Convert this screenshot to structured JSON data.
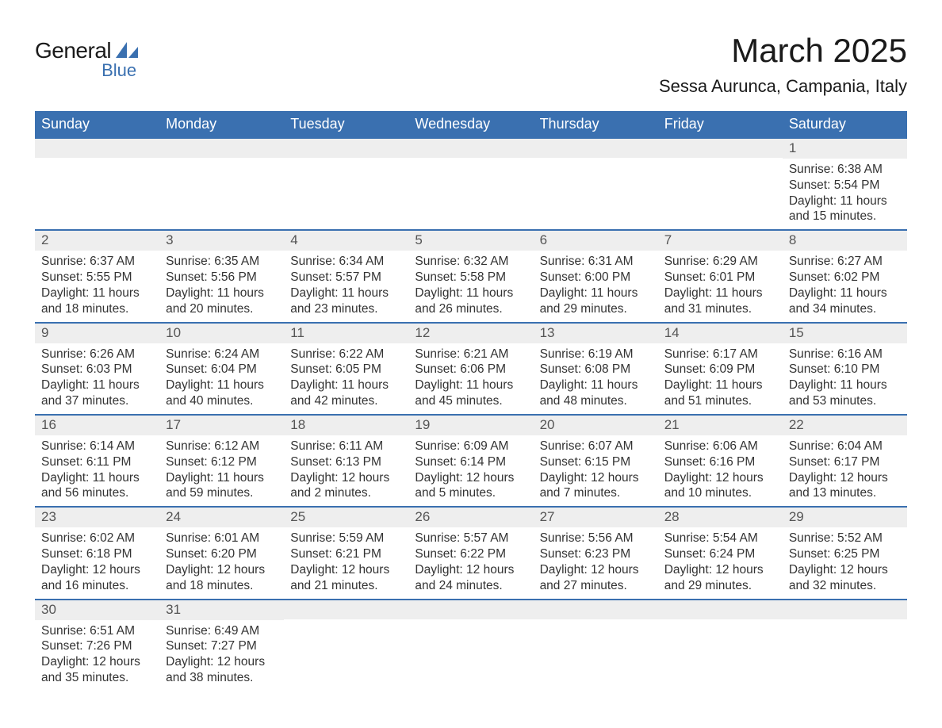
{
  "logo": {
    "main": "General",
    "sub": "Blue",
    "accent_color": "#3a70b0"
  },
  "title": "March 2025",
  "location": "Sessa Aurunca, Campania, Italy",
  "header_bg": "#3a70b0",
  "stripe_bg": "#eeeeee",
  "row_border": "#3a70b0",
  "day_headers": [
    "Sunday",
    "Monday",
    "Tuesday",
    "Wednesday",
    "Thursday",
    "Friday",
    "Saturday"
  ],
  "weeks": [
    [
      null,
      null,
      null,
      null,
      null,
      null,
      {
        "n": "1",
        "sunrise": "6:38 AM",
        "sunset": "5:54 PM",
        "daylight": "11 hours and 15 minutes."
      }
    ],
    [
      {
        "n": "2",
        "sunrise": "6:37 AM",
        "sunset": "5:55 PM",
        "daylight": "11 hours and 18 minutes."
      },
      {
        "n": "3",
        "sunrise": "6:35 AM",
        "sunset": "5:56 PM",
        "daylight": "11 hours and 20 minutes."
      },
      {
        "n": "4",
        "sunrise": "6:34 AM",
        "sunset": "5:57 PM",
        "daylight": "11 hours and 23 minutes."
      },
      {
        "n": "5",
        "sunrise": "6:32 AM",
        "sunset": "5:58 PM",
        "daylight": "11 hours and 26 minutes."
      },
      {
        "n": "6",
        "sunrise": "6:31 AM",
        "sunset": "6:00 PM",
        "daylight": "11 hours and 29 minutes."
      },
      {
        "n": "7",
        "sunrise": "6:29 AM",
        "sunset": "6:01 PM",
        "daylight": "11 hours and 31 minutes."
      },
      {
        "n": "8",
        "sunrise": "6:27 AM",
        "sunset": "6:02 PM",
        "daylight": "11 hours and 34 minutes."
      }
    ],
    [
      {
        "n": "9",
        "sunrise": "6:26 AM",
        "sunset": "6:03 PM",
        "daylight": "11 hours and 37 minutes."
      },
      {
        "n": "10",
        "sunrise": "6:24 AM",
        "sunset": "6:04 PM",
        "daylight": "11 hours and 40 minutes."
      },
      {
        "n": "11",
        "sunrise": "6:22 AM",
        "sunset": "6:05 PM",
        "daylight": "11 hours and 42 minutes."
      },
      {
        "n": "12",
        "sunrise": "6:21 AM",
        "sunset": "6:06 PM",
        "daylight": "11 hours and 45 minutes."
      },
      {
        "n": "13",
        "sunrise": "6:19 AM",
        "sunset": "6:08 PM",
        "daylight": "11 hours and 48 minutes."
      },
      {
        "n": "14",
        "sunrise": "6:17 AM",
        "sunset": "6:09 PM",
        "daylight": "11 hours and 51 minutes."
      },
      {
        "n": "15",
        "sunrise": "6:16 AM",
        "sunset": "6:10 PM",
        "daylight": "11 hours and 53 minutes."
      }
    ],
    [
      {
        "n": "16",
        "sunrise": "6:14 AM",
        "sunset": "6:11 PM",
        "daylight": "11 hours and 56 minutes."
      },
      {
        "n": "17",
        "sunrise": "6:12 AM",
        "sunset": "6:12 PM",
        "daylight": "11 hours and 59 minutes."
      },
      {
        "n": "18",
        "sunrise": "6:11 AM",
        "sunset": "6:13 PM",
        "daylight": "12 hours and 2 minutes."
      },
      {
        "n": "19",
        "sunrise": "6:09 AM",
        "sunset": "6:14 PM",
        "daylight": "12 hours and 5 minutes."
      },
      {
        "n": "20",
        "sunrise": "6:07 AM",
        "sunset": "6:15 PM",
        "daylight": "12 hours and 7 minutes."
      },
      {
        "n": "21",
        "sunrise": "6:06 AM",
        "sunset": "6:16 PM",
        "daylight": "12 hours and 10 minutes."
      },
      {
        "n": "22",
        "sunrise": "6:04 AM",
        "sunset": "6:17 PM",
        "daylight": "12 hours and 13 minutes."
      }
    ],
    [
      {
        "n": "23",
        "sunrise": "6:02 AM",
        "sunset": "6:18 PM",
        "daylight": "12 hours and 16 minutes."
      },
      {
        "n": "24",
        "sunrise": "6:01 AM",
        "sunset": "6:20 PM",
        "daylight": "12 hours and 18 minutes."
      },
      {
        "n": "25",
        "sunrise": "5:59 AM",
        "sunset": "6:21 PM",
        "daylight": "12 hours and 21 minutes."
      },
      {
        "n": "26",
        "sunrise": "5:57 AM",
        "sunset": "6:22 PM",
        "daylight": "12 hours and 24 minutes."
      },
      {
        "n": "27",
        "sunrise": "5:56 AM",
        "sunset": "6:23 PM",
        "daylight": "12 hours and 27 minutes."
      },
      {
        "n": "28",
        "sunrise": "5:54 AM",
        "sunset": "6:24 PM",
        "daylight": "12 hours and 29 minutes."
      },
      {
        "n": "29",
        "sunrise": "5:52 AM",
        "sunset": "6:25 PM",
        "daylight": "12 hours and 32 minutes."
      }
    ],
    [
      {
        "n": "30",
        "sunrise": "6:51 AM",
        "sunset": "7:26 PM",
        "daylight": "12 hours and 35 minutes."
      },
      {
        "n": "31",
        "sunrise": "6:49 AM",
        "sunset": "7:27 PM",
        "daylight": "12 hours and 38 minutes."
      },
      null,
      null,
      null,
      null,
      null
    ]
  ],
  "labels": {
    "sunrise": "Sunrise: ",
    "sunset": "Sunset: ",
    "daylight": "Daylight: "
  }
}
